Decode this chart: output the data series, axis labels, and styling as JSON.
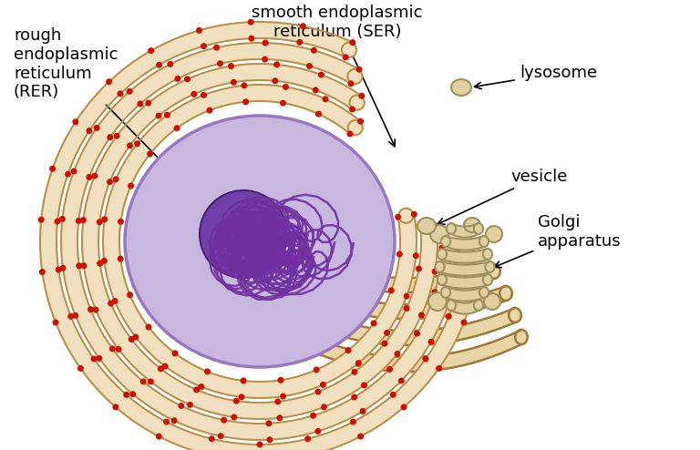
{
  "bg_color": "#ffffff",
  "rer_fill_color": "#f0e0c0",
  "rer_edge_color": "#b8924a",
  "rer_dot_color": "#cc1100",
  "ser_fill_color": "#e8d5a8",
  "ser_edge_color": "#a07838",
  "nucleus_color": "#c0aade",
  "nucleus_edge": "#9080c0",
  "nucleolus_color": "#7040a0",
  "chromatin_color": "#6030a0",
  "golgi_fill": "#e0cfa0",
  "golgi_edge": "#a09060",
  "label_rer": "rough\nendoplasmic\nreticulum\n(RER)",
  "label_ser": "smooth endoplasmic\nreticulum (SER)",
  "label_vesicle": "vesicle",
  "label_golgi": "Golgi\napparatus",
  "label_lysosome": "lysosome",
  "figsize": [
    7.68,
    4.94
  ],
  "dpi": 100
}
